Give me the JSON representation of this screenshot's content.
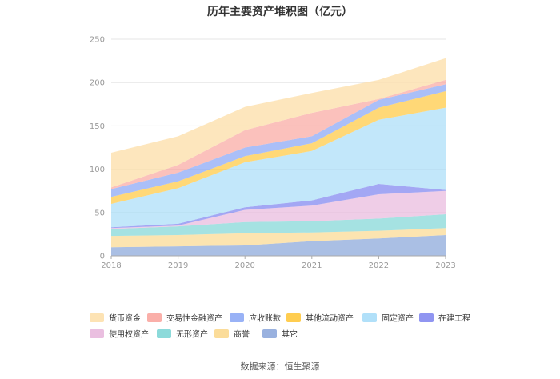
{
  "chart_data": {
    "type": "area",
    "stacked": true,
    "title": "历年主要资产堆积图（亿元）",
    "x": [
      "2018",
      "2019",
      "2020",
      "2021",
      "2022",
      "2023"
    ],
    "ylim": [
      0,
      250
    ],
    "yticks": [
      0,
      50,
      100,
      150,
      200,
      250
    ],
    "grid": true,
    "legend_position": "bottom",
    "series": [
      {
        "name": "其它",
        "color": "#8ea9db",
        "opacity": 0.75,
        "values": [
          10,
          11,
          12,
          17,
          20,
          24
        ]
      },
      {
        "name": "商誉",
        "color": "#fbd88e",
        "opacity": 0.7,
        "values": [
          23,
          24,
          26,
          27,
          29,
          32
        ]
      },
      {
        "name": "无形资产",
        "color": "#7fd6d6",
        "opacity": 0.7,
        "values": [
          31,
          34,
          39,
          40,
          43,
          48
        ]
      },
      {
        "name": "使用权资产",
        "color": "#e8b8dd",
        "opacity": 0.7,
        "values": [
          32,
          35,
          53,
          58,
          71,
          75
        ]
      },
      {
        "name": "在建工程",
        "color": "#8489f0",
        "opacity": 0.75,
        "values": [
          33,
          37,
          56,
          64,
          83,
          76
        ]
      },
      {
        "name": "固定资产",
        "color": "#a8ddf8",
        "opacity": 0.7,
        "values": [
          60,
          78,
          108,
          121,
          157,
          171
        ]
      },
      {
        "name": "其他流动资产",
        "color": "#ffc83d",
        "opacity": 0.7,
        "values": [
          68,
          86,
          115,
          130,
          171,
          190
        ]
      },
      {
        "name": "应收账款",
        "color": "#8eaaf5",
        "opacity": 0.75,
        "values": [
          77,
          96,
          125,
          138,
          180,
          198
        ]
      },
      {
        "name": "交易性金融资产",
        "color": "#f9a6a0",
        "opacity": 0.7,
        "values": [
          79,
          105,
          145,
          165,
          181,
          203
        ]
      },
      {
        "name": "货币资金",
        "color": "#fde0ac",
        "opacity": 0.8,
        "values": [
          119,
          138,
          172,
          188,
          203,
          228
        ]
      }
    ],
    "legend_order": [
      "货币资金",
      "交易性金融资产",
      "应收账款",
      "其他流动资产",
      "固定资产",
      "在建工程",
      "使用权资产",
      "无形资产",
      "商誉",
      "其它"
    ]
  },
  "source_text": "数据来源：恒生聚源"
}
